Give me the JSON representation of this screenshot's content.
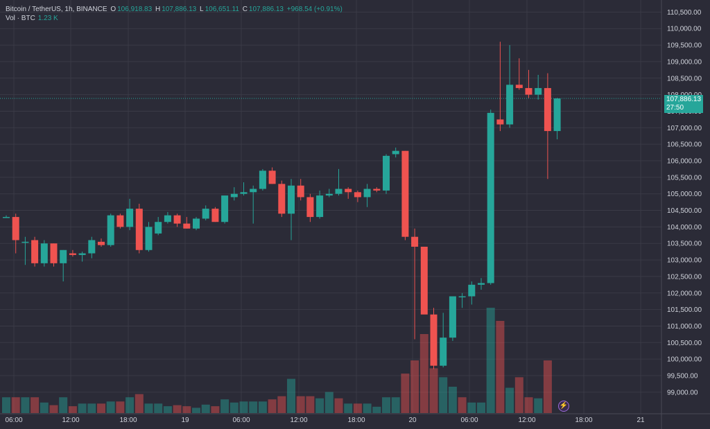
{
  "legend": {
    "symbol": "Bitcoin / TetherUS, 1h, BINANCE",
    "o_label": "O",
    "o_value": "106,918.83",
    "h_label": "H",
    "h_value": "107,886.13",
    "l_label": "L",
    "l_value": "106,651.11",
    "c_label": "C",
    "c_value": "107,886.13",
    "change": "+968.54 (+0.91%)"
  },
  "volume_legend": {
    "label": "Vol · BTC",
    "value": "1.23 K"
  },
  "last_price": {
    "price": "107,886.13",
    "countdown": "27:50"
  },
  "icons": {
    "flash": "lightning-icon"
  },
  "colors": {
    "up": "#26a69a",
    "down": "#ef5350",
    "background": "#2b2b37",
    "grid": "#3a3a46"
  },
  "chart_data": {
    "type": "candlestick",
    "y_ticks": [
      "110,500.00",
      "110,000.00",
      "109,500.00",
      "109,000.00",
      "108,500.00",
      "108,000.00",
      "107,500.00",
      "107,000.00",
      "106,500.00",
      "106,000.00",
      "105,500.00",
      "105,000.00",
      "104,500.00",
      "104,000.00",
      "103,500.00",
      "103,000.00",
      "102,500.00",
      "102,000.00",
      "101,500.00",
      "101,000.00",
      "100,500.00",
      "100,000.00",
      "99,500.00",
      "99,000.00"
    ],
    "x_ticks": [
      "06:00",
      "12:00",
      "18:00",
      "19",
      "06:00",
      "12:00",
      "18:00",
      "20",
      "06:00",
      "12:00",
      "18:00",
      "21"
    ],
    "ylim": [
      98850,
      110550
    ],
    "candles": [
      {
        "o": 104300,
        "h": 104350,
        "l": 104280,
        "c": 104300
      },
      {
        "o": 104300,
        "h": 104400,
        "l": 103200,
        "c": 103600
      },
      {
        "o": 103550,
        "h": 103700,
        "l": 102850,
        "c": 103550
      },
      {
        "o": 103600,
        "h": 103700,
        "l": 102800,
        "c": 102900
      },
      {
        "o": 102900,
        "h": 103600,
        "l": 102800,
        "c": 103500
      },
      {
        "o": 103500,
        "h": 103500,
        "l": 102800,
        "c": 102900
      },
      {
        "o": 102900,
        "h": 103300,
        "l": 102350,
        "c": 103300
      },
      {
        "o": 103200,
        "h": 103300,
        "l": 103100,
        "c": 103150
      },
      {
        "o": 103150,
        "h": 103250,
        "l": 102950,
        "c": 103200
      },
      {
        "o": 103200,
        "h": 103700,
        "l": 103050,
        "c": 103600
      },
      {
        "o": 103550,
        "h": 103650,
        "l": 103400,
        "c": 103450
      },
      {
        "o": 103450,
        "h": 104400,
        "l": 103400,
        "c": 104350
      },
      {
        "o": 104350,
        "h": 104400,
        "l": 103950,
        "c": 104000
      },
      {
        "o": 104000,
        "h": 104850,
        "l": 103900,
        "c": 104550
      },
      {
        "o": 104550,
        "h": 104700,
        "l": 103200,
        "c": 103300
      },
      {
        "o": 103300,
        "h": 104150,
        "l": 103250,
        "c": 104000
      },
      {
        "o": 103800,
        "h": 104300,
        "l": 103750,
        "c": 104150
      },
      {
        "o": 104150,
        "h": 104450,
        "l": 104100,
        "c": 104350
      },
      {
        "o": 104350,
        "h": 104400,
        "l": 104000,
        "c": 104100
      },
      {
        "o": 104100,
        "h": 104300,
        "l": 103950,
        "c": 103950
      },
      {
        "o": 103950,
        "h": 104300,
        "l": 103900,
        "c": 104250
      },
      {
        "o": 104250,
        "h": 104650,
        "l": 104200,
        "c": 104550
      },
      {
        "o": 104550,
        "h": 104600,
        "l": 104150,
        "c": 104150
      },
      {
        "o": 104150,
        "h": 104950,
        "l": 104100,
        "c": 104950
      },
      {
        "o": 104900,
        "h": 105200,
        "l": 104800,
        "c": 105000
      },
      {
        "o": 105000,
        "h": 105350,
        "l": 104950,
        "c": 105050
      },
      {
        "o": 105050,
        "h": 105250,
        "l": 104100,
        "c": 105150
      },
      {
        "o": 105150,
        "h": 105750,
        "l": 105100,
        "c": 105700
      },
      {
        "o": 105700,
        "h": 105800,
        "l": 105300,
        "c": 105300
      },
      {
        "o": 105300,
        "h": 105400,
        "l": 104300,
        "c": 104400
      },
      {
        "o": 104400,
        "h": 105450,
        "l": 103600,
        "c": 105250
      },
      {
        "o": 105250,
        "h": 105450,
        "l": 104800,
        "c": 104900
      },
      {
        "o": 104900,
        "h": 105000,
        "l": 104150,
        "c": 104300
      },
      {
        "o": 104300,
        "h": 105100,
        "l": 104250,
        "c": 104950
      },
      {
        "o": 104950,
        "h": 105150,
        "l": 104900,
        "c": 105000
      },
      {
        "o": 105000,
        "h": 105750,
        "l": 104950,
        "c": 105150
      },
      {
        "o": 105150,
        "h": 105200,
        "l": 104850,
        "c": 105050
      },
      {
        "o": 105050,
        "h": 105100,
        "l": 104750,
        "c": 104900
      },
      {
        "o": 104900,
        "h": 105300,
        "l": 104600,
        "c": 105150
      },
      {
        "o": 105150,
        "h": 105200,
        "l": 105050,
        "c": 105100
      },
      {
        "o": 105100,
        "h": 106200,
        "l": 105000,
        "c": 106150
      },
      {
        "o": 106200,
        "h": 106400,
        "l": 106100,
        "c": 106300
      },
      {
        "o": 106300,
        "h": 106300,
        "l": 103600,
        "c": 103700
      },
      {
        "o": 103700,
        "h": 103950,
        "l": 100600,
        "c": 103400
      },
      {
        "o": 103400,
        "h": 103400,
        "l": 101400,
        "c": 101350
      },
      {
        "o": 101350,
        "h": 101550,
        "l": 99700,
        "c": 99800
      },
      {
        "o": 99800,
        "h": 101400,
        "l": 99750,
        "c": 100650
      },
      {
        "o": 100650,
        "h": 101850,
        "l": 100550,
        "c": 101900
      },
      {
        "o": 101900,
        "h": 102000,
        "l": 101550,
        "c": 101900
      },
      {
        "o": 101900,
        "h": 102350,
        "l": 101650,
        "c": 102250
      },
      {
        "o": 102250,
        "h": 102450,
        "l": 102100,
        "c": 102300
      },
      {
        "o": 102300,
        "h": 107550,
        "l": 102250,
        "c": 107450
      },
      {
        "o": 107250,
        "h": 109600,
        "l": 106900,
        "c": 107100
      },
      {
        "o": 107100,
        "h": 109500,
        "l": 107000,
        "c": 108300
      },
      {
        "o": 108300,
        "h": 109100,
        "l": 108150,
        "c": 108200
      },
      {
        "o": 108200,
        "h": 108750,
        "l": 107900,
        "c": 108000
      },
      {
        "o": 108000,
        "h": 108600,
        "l": 107850,
        "c": 108200
      },
      {
        "o": 108200,
        "h": 108650,
        "l": 105450,
        "c": 106900
      },
      {
        "o": 106900,
        "h": 107900,
        "l": 106650,
        "c": 107886
      }
    ],
    "volume": [
      {
        "v": 0.3,
        "up": true
      },
      {
        "v": 0.3,
        "up": false
      },
      {
        "v": 0.3,
        "up": true
      },
      {
        "v": 0.3,
        "up": false
      },
      {
        "v": 0.2,
        "up": true
      },
      {
        "v": 0.15,
        "up": false
      },
      {
        "v": 0.3,
        "up": true
      },
      {
        "v": 0.13,
        "up": false
      },
      {
        "v": 0.18,
        "up": true
      },
      {
        "v": 0.18,
        "up": true
      },
      {
        "v": 0.18,
        "up": false
      },
      {
        "v": 0.22,
        "up": true
      },
      {
        "v": 0.22,
        "up": false
      },
      {
        "v": 0.3,
        "up": true
      },
      {
        "v": 0.36,
        "up": false
      },
      {
        "v": 0.18,
        "up": true
      },
      {
        "v": 0.18,
        "up": true
      },
      {
        "v": 0.13,
        "up": true
      },
      {
        "v": 0.15,
        "up": false
      },
      {
        "v": 0.13,
        "up": false
      },
      {
        "v": 0.1,
        "up": true
      },
      {
        "v": 0.16,
        "up": true
      },
      {
        "v": 0.13,
        "up": false
      },
      {
        "v": 0.26,
        "up": true
      },
      {
        "v": 0.2,
        "up": true
      },
      {
        "v": 0.22,
        "up": true
      },
      {
        "v": 0.22,
        "up": true
      },
      {
        "v": 0.22,
        "up": true
      },
      {
        "v": 0.26,
        "up": false
      },
      {
        "v": 0.32,
        "up": false
      },
      {
        "v": 0.65,
        "up": true
      },
      {
        "v": 0.32,
        "up": false
      },
      {
        "v": 0.32,
        "up": false
      },
      {
        "v": 0.28,
        "up": true
      },
      {
        "v": 0.4,
        "up": true
      },
      {
        "v": 0.28,
        "up": false
      },
      {
        "v": 0.18,
        "up": true
      },
      {
        "v": 0.18,
        "up": false
      },
      {
        "v": 0.18,
        "up": true
      },
      {
        "v": 0.12,
        "up": true
      },
      {
        "v": 0.3,
        "up": true
      },
      {
        "v": 0.3,
        "up": true
      },
      {
        "v": 0.75,
        "up": false
      },
      {
        "v": 1.0,
        "up": false
      },
      {
        "v": 1.5,
        "up": false
      },
      {
        "v": 0.85,
        "up": false
      },
      {
        "v": 0.68,
        "up": true
      },
      {
        "v": 0.5,
        "up": true
      },
      {
        "v": 0.3,
        "up": false
      },
      {
        "v": 0.2,
        "up": true
      },
      {
        "v": 0.2,
        "up": true
      },
      {
        "v": 2.0,
        "up": true
      },
      {
        "v": 1.75,
        "up": false
      },
      {
        "v": 0.48,
        "up": true
      },
      {
        "v": 0.68,
        "up": false
      },
      {
        "v": 0.3,
        "up": false
      },
      {
        "v": 0.28,
        "up": true
      },
      {
        "v": 1.0,
        "up": false
      },
      {
        "v": 0.0,
        "up": true
      }
    ]
  }
}
